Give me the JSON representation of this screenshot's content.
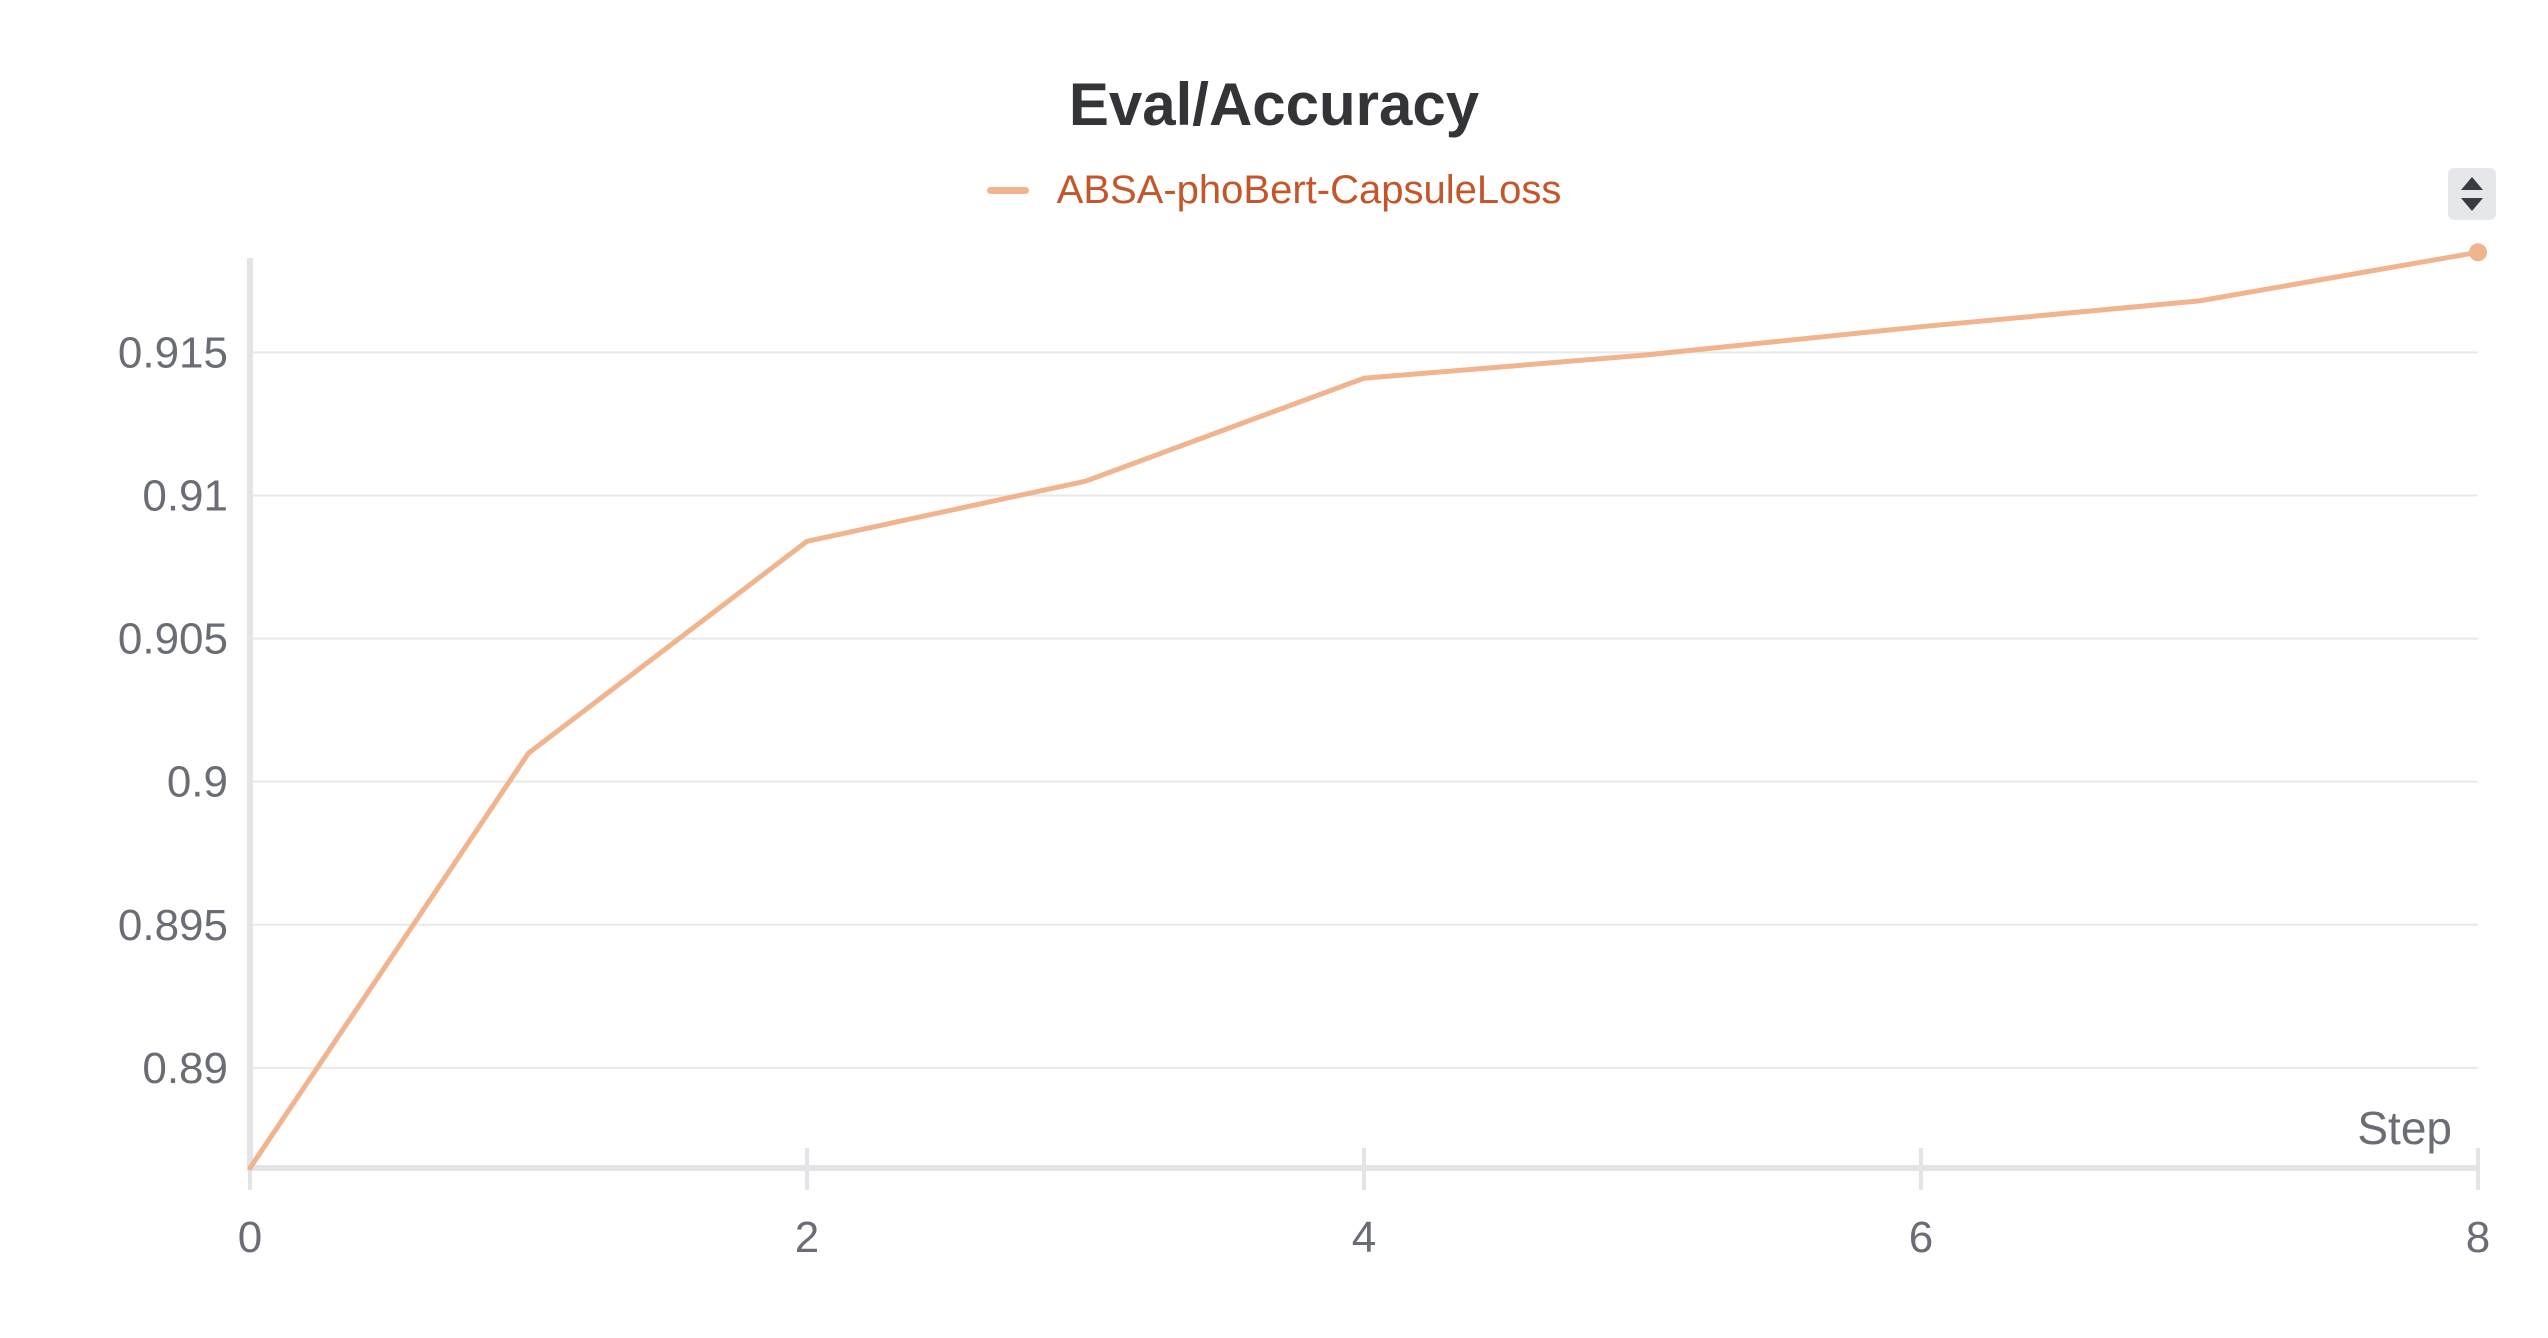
{
  "chart_data": {
    "type": "line",
    "title": "Eval/Accuracy",
    "xlabel": "Step",
    "ylabel": "",
    "xlim": [
      0,
      8
    ],
    "ylim": [
      0.8865,
      0.9183
    ],
    "x_ticks": [
      0,
      2,
      4,
      6,
      8
    ],
    "y_ticks": [
      0.89,
      0.895,
      0.9,
      0.905,
      0.91,
      0.915
    ],
    "y_tick_labels": [
      "0.89",
      "0.895",
      "0.9",
      "0.905",
      "0.91",
      "0.915"
    ],
    "x_tick_labels": [
      "0",
      "2",
      "4",
      "6",
      "8"
    ],
    "grid": "horizontal",
    "legend_position": "top-center",
    "series": [
      {
        "name": "ABSA-phoBert-CapsuleLoss",
        "color": "#f0b48f",
        "x": [
          0,
          1,
          2,
          3,
          4,
          5,
          6,
          7,
          8
        ],
        "y": [
          0.8865,
          0.901,
          0.9084,
          0.9105,
          0.9141,
          0.9149,
          0.9159,
          0.9168,
          0.9185
        ]
      }
    ]
  },
  "legend_text_color": "#c4562a",
  "sort_control": {
    "icon": "sort-up-down-icon"
  }
}
